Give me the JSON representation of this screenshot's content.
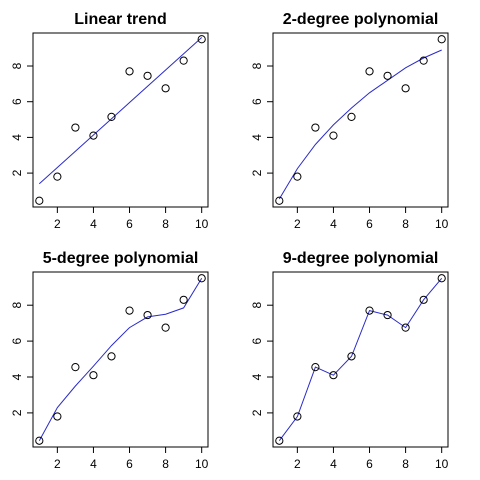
{
  "chart_data": [
    {
      "type": "scatter",
      "title": "Linear trend",
      "x": [
        1,
        2,
        3,
        4,
        5,
        6,
        7,
        8,
        9,
        10
      ],
      "y": [
        0.45,
        1.8,
        4.55,
        4.1,
        5.15,
        7.7,
        7.45,
        6.75,
        8.3,
        9.5
      ],
      "fit": {
        "x": [
          1,
          10
        ],
        "y": [
          1.4,
          9.6
        ]
      },
      "xticks": [
        "2",
        "4",
        "6",
        "8",
        "10"
      ],
      "yticks": [
        "2",
        "4",
        "6",
        "8"
      ],
      "grid": false,
      "point_color": "#000000",
      "line_color": "#2b2bc8"
    },
    {
      "type": "scatter",
      "title": "2-degree polynomial",
      "x": [
        1,
        2,
        3,
        4,
        5,
        6,
        7,
        8,
        9,
        10
      ],
      "y": [
        0.45,
        1.8,
        4.55,
        4.1,
        5.15,
        7.7,
        7.45,
        6.75,
        8.3,
        9.5
      ],
      "fit": {
        "x": [
          1,
          2,
          3,
          4,
          5,
          6,
          7,
          8,
          9,
          10
        ],
        "y": [
          0.55,
          2.25,
          3.6,
          4.7,
          5.65,
          6.5,
          7.2,
          7.9,
          8.45,
          8.9
        ]
      },
      "xticks": [
        "2",
        "4",
        "6",
        "8",
        "10"
      ],
      "yticks": [
        "2",
        "4",
        "6",
        "8"
      ],
      "grid": false,
      "point_color": "#000000",
      "line_color": "#2b2bc8"
    },
    {
      "type": "scatter",
      "title": "5-degree polynomial",
      "x": [
        1,
        2,
        3,
        4,
        5,
        6,
        7,
        8,
        9,
        10
      ],
      "y": [
        0.45,
        1.8,
        4.55,
        4.1,
        5.15,
        7.7,
        7.45,
        6.75,
        8.3,
        9.5
      ],
      "fit": {
        "x": [
          1,
          2,
          3,
          4,
          5,
          6,
          7,
          8,
          9,
          10
        ],
        "y": [
          0.45,
          2.3,
          3.5,
          4.6,
          5.75,
          6.75,
          7.35,
          7.5,
          7.85,
          9.5
        ]
      },
      "xticks": [
        "2",
        "4",
        "6",
        "8",
        "10"
      ],
      "yticks": [
        "2",
        "4",
        "6",
        "8"
      ],
      "grid": false,
      "point_color": "#000000",
      "line_color": "#2b2bc8"
    },
    {
      "type": "scatter",
      "title": "9-degree polynomial",
      "x": [
        1,
        2,
        3,
        4,
        5,
        6,
        7,
        8,
        9,
        10
      ],
      "y": [
        0.45,
        1.8,
        4.55,
        4.1,
        5.15,
        7.7,
        7.45,
        6.75,
        8.3,
        9.5
      ],
      "fit": {
        "x": [
          1,
          2,
          3,
          4,
          5,
          6,
          7,
          8,
          9,
          10
        ],
        "y": [
          0.45,
          1.8,
          4.55,
          4.1,
          5.15,
          7.7,
          7.45,
          6.75,
          8.3,
          9.5
        ]
      },
      "xticks": [
        "2",
        "4",
        "6",
        "8",
        "10"
      ],
      "yticks": [
        "2",
        "4",
        "6",
        "8"
      ],
      "grid": false,
      "point_color": "#000000",
      "line_color": "#2b2bc8"
    }
  ]
}
